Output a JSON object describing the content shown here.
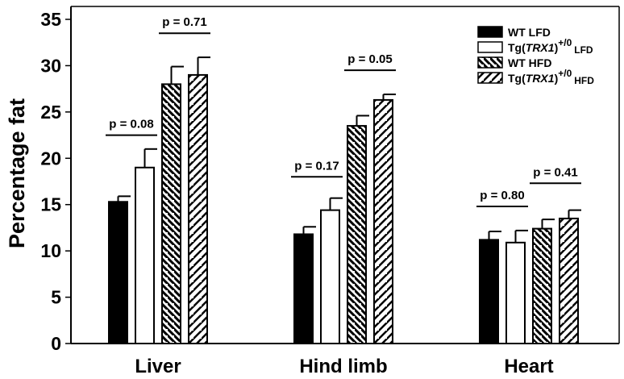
{
  "chart_data": {
    "type": "bar",
    "ylabel": "Percentage fat",
    "ylim": [
      0,
      35
    ],
    "yticks": [
      0,
      5,
      10,
      15,
      20,
      25,
      30,
      35
    ],
    "categories": [
      "Liver",
      "Hind limb",
      "Heart"
    ],
    "series": [
      {
        "name": "WT LFD",
        "values": [
          15.3,
          11.8,
          11.2
        ],
        "errors": [
          0.6,
          0.8,
          0.9
        ],
        "fill": "solid"
      },
      {
        "name": "Tg(TRX1)+/0 LFD",
        "values": [
          19.0,
          14.4,
          10.9
        ],
        "errors": [
          2.0,
          1.3,
          1.3
        ],
        "fill": "open"
      },
      {
        "name": "WT HFD",
        "values": [
          28.0,
          23.5,
          12.4
        ],
        "errors": [
          1.9,
          1.1,
          1.0
        ],
        "fill": "hatch-back"
      },
      {
        "name": "Tg(TRX1)+/0 HFD",
        "values": [
          29.0,
          26.3,
          13.5
        ],
        "errors": [
          1.9,
          0.6,
          0.9
        ],
        "fill": "hatch-fwd"
      }
    ],
    "annotations": [
      {
        "text": "p = 0.08",
        "group": 0,
        "pair": [
          0,
          1
        ],
        "y": 22.5
      },
      {
        "text": "p = 0.71",
        "group": 0,
        "pair": [
          2,
          3
        ],
        "y": 33.5
      },
      {
        "text": "p = 0.17",
        "group": 1,
        "pair": [
          0,
          1
        ],
        "y": 18.0
      },
      {
        "text": "p = 0.05",
        "group": 1,
        "pair": [
          2,
          3
        ],
        "y": 29.5
      },
      {
        "text": "p = 0.80",
        "group": 2,
        "pair": [
          0,
          1
        ],
        "y": 14.8
      },
      {
        "text": "p = 0.41",
        "group": 2,
        "pair": [
          2,
          3
        ],
        "y": 17.3
      }
    ],
    "legend": {
      "position": "top-right",
      "entries": [
        {
          "main": "WT LFD",
          "italic": "",
          "sup": "",
          "tail": ""
        },
        {
          "main": "Tg(",
          "italic": "TRX1",
          "close": ")",
          "sup": "+/0",
          "tail": "LFD"
        },
        {
          "main": "WT HFD",
          "italic": "",
          "sup": "",
          "tail": ""
        },
        {
          "main": "Tg(",
          "italic": "TRX1",
          "close": ")",
          "sup": "+/0",
          "tail": "HFD"
        }
      ]
    }
  }
}
